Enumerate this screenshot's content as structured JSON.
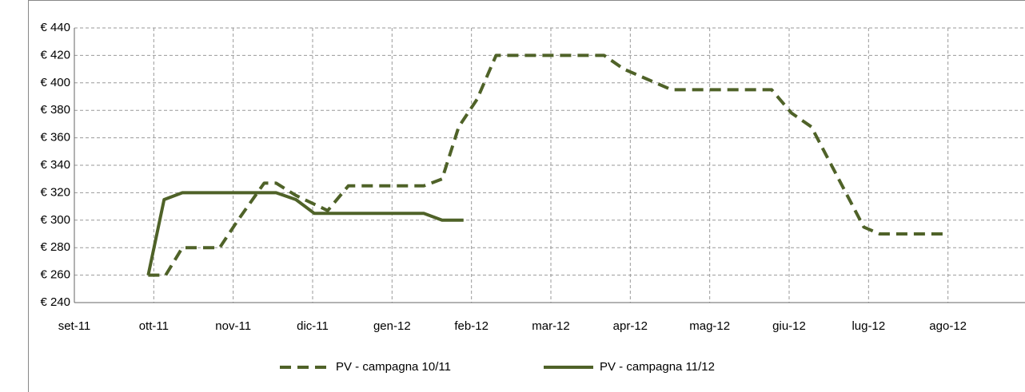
{
  "chart_data": {
    "type": "line",
    "xlim": [
      0,
      12
    ],
    "xticks": [
      {
        "value": 0,
        "label": "set-11"
      },
      {
        "value": 1,
        "label": "ott-11"
      },
      {
        "value": 2,
        "label": "nov-11"
      },
      {
        "value": 3,
        "label": "dic-11"
      },
      {
        "value": 4,
        "label": "gen-12"
      },
      {
        "value": 5,
        "label": "feb-12"
      },
      {
        "value": 6,
        "label": "mar-12"
      },
      {
        "value": 7,
        "label": "apr-12"
      },
      {
        "value": 8,
        "label": "mag-12"
      },
      {
        "value": 9,
        "label": "giu-12"
      },
      {
        "value": 10,
        "label": "lug-12"
      },
      {
        "value": 11,
        "label": "ago-12"
      }
    ],
    "ylim": [
      240,
      440
    ],
    "yticks": [
      {
        "value": 240,
        "label": "€ 240"
      },
      {
        "value": 260,
        "label": "€ 260"
      },
      {
        "value": 280,
        "label": "€ 280"
      },
      {
        "value": 300,
        "label": "€ 300"
      },
      {
        "value": 320,
        "label": "€ 320"
      },
      {
        "value": 340,
        "label": "€ 340"
      },
      {
        "value": 360,
        "label": "€ 360"
      },
      {
        "value": 380,
        "label": "€ 380"
      },
      {
        "value": 400,
        "label": "€ 400"
      },
      {
        "value": 420,
        "label": "€ 420"
      },
      {
        "value": 440,
        "label": "€ 440"
      }
    ],
    "grid": true,
    "legend": "bottom",
    "series": [
      {
        "name": "PV - campagna 10/11",
        "color": "#4f6228",
        "dashed": true,
        "x": [
          0.93,
          1.15,
          1.36,
          1.83,
          2.06,
          2.39,
          2.54,
          2.79,
          3.19,
          3.45,
          4.4,
          4.63,
          4.84,
          5.07,
          5.31,
          6.67,
          6.92,
          7.52,
          8.78,
          9.03,
          9.28,
          9.94,
          10.14,
          10.95
        ],
        "values": [
          260,
          260,
          280,
          280,
          300,
          327,
          327,
          318,
          307,
          325,
          325,
          330,
          368,
          388,
          420,
          420,
          410,
          395,
          395,
          378,
          368,
          295,
          290,
          290
        ]
      },
      {
        "name": "PV - campagna 11/12",
        "color": "#4f6228",
        "dashed": false,
        "x": [
          0.93,
          1.13,
          1.36,
          2.54,
          2.79,
          3.02,
          4.4,
          4.63,
          4.9
        ],
        "values": [
          260,
          315,
          320,
          320,
          315,
          305,
          305,
          300,
          300
        ]
      }
    ]
  }
}
